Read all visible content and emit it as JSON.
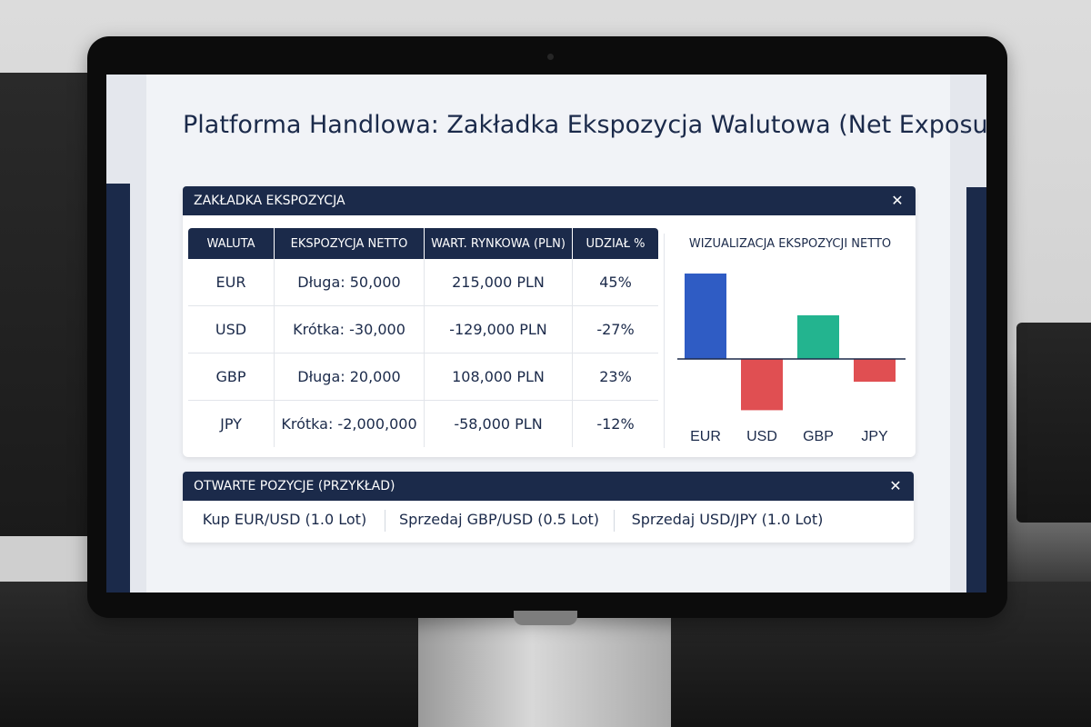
{
  "page_title": "Platforma Handlowa: Zakładka Ekspozycja Walutowa (Net Exposure)",
  "exposure_panel": {
    "title": "ZAKŁADKA EKSPOZYCJA",
    "close_icon": "close-icon",
    "close_glyph": "✕",
    "columns": [
      "WALUTA",
      "EKSPOZYCJA NETTO",
      "WART. RYNKOWA (PLN)",
      "UDZIAŁ %"
    ],
    "rows": [
      [
        "EUR",
        "Długa: 50,000",
        "215,000 PLN",
        "45%"
      ],
      [
        "USD",
        "Krótka: -30,000",
        "-129,000 PLN",
        "-27%"
      ],
      [
        "GBP",
        "Długa: 20,000",
        "108,000 PLN",
        "23%"
      ],
      [
        "JPY",
        "Krótka: -2,000,000",
        "-58,000 PLN",
        "-12%"
      ]
    ]
  },
  "chart_data": {
    "type": "bar",
    "title": "WIZUALIZACJA EKSPOZYCJI NETTO",
    "categories": [
      "EUR",
      "USD",
      "GBP",
      "JPY"
    ],
    "values": [
      45,
      -27,
      23,
      -12
    ],
    "colors": [
      "#2f5cc4",
      "#e04f52",
      "#23b48f",
      "#e04f52"
    ],
    "xlabel": "",
    "ylabel": "",
    "ylim": [
      -27,
      45
    ],
    "grid": false
  },
  "positions_panel": {
    "title": "OTWARTE POZYCJE (PRZYKŁAD)",
    "close_icon": "close-icon",
    "close_glyph": "✕",
    "items": [
      "Kup EUR/USD (1.0 Lot)",
      "Sprzedaj GBP/USD (0.5 Lot)",
      "Sprzedaj USD/JPY (1.0 Lot)"
    ]
  },
  "colors": {
    "header_navy": "#1b2a4a",
    "screen_bg": "#f1f3f7"
  }
}
